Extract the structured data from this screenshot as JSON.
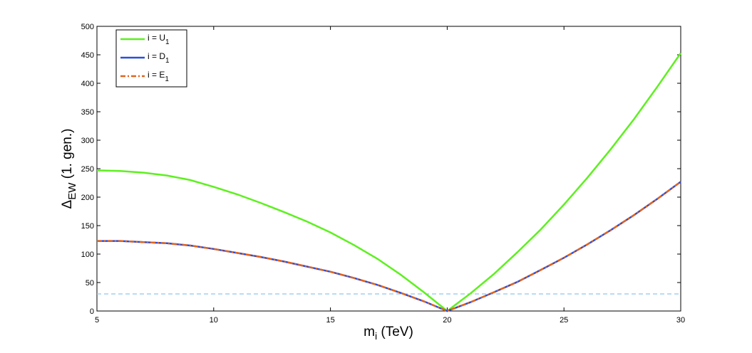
{
  "chart_data": {
    "type": "line",
    "xlabel": {
      "main": "m",
      "sub": "i",
      "rest": " (TeV)"
    },
    "ylabel": {
      "main": "Δ",
      "sub": "EW",
      "rest": " (1. gen.)"
    },
    "x": [
      5,
      6,
      7,
      8,
      9,
      10,
      11,
      12,
      13,
      14,
      15,
      16,
      17,
      18,
      19,
      20,
      21,
      22,
      23,
      24,
      25,
      26,
      27,
      28,
      29,
      30
    ],
    "series": [
      {
        "name": {
          "main": "i = U",
          "sub": "1"
        },
        "color": "#5ef01f",
        "dash": "none",
        "values": [
          247,
          246,
          243,
          238,
          230,
          218,
          205,
          190,
          174,
          157,
          138,
          116,
          92,
          64,
          33,
          0,
          31,
          65,
          103,
          143,
          187,
          234,
          284,
          337,
          394,
          453
        ]
      },
      {
        "name": {
          "main": "i = D",
          "sub": "1"
        },
        "color": "#2b4fd9",
        "dash": "none",
        "values": [
          123,
          123,
          121,
          119,
          115,
          109,
          102,
          95,
          87,
          78,
          69,
          58,
          46,
          32,
          17,
          0,
          15.5,
          33,
          51,
          72,
          93.5,
          117,
          142,
          168.5,
          197,
          227
        ]
      },
      {
        "name": {
          "main": "i = E",
          "sub": "1"
        },
        "color": "#e0641e",
        "dash": "7 3 2 3",
        "values": [
          123,
          123,
          121,
          119,
          115,
          109,
          102,
          95,
          87,
          78,
          69,
          58,
          46,
          32,
          17,
          0,
          15.5,
          33,
          51,
          72,
          93.5,
          117,
          142,
          168.5,
          197,
          227
        ]
      }
    ],
    "hline": {
      "value": 30,
      "color": "#8ec8ef"
    },
    "xlim": [
      5,
      30
    ],
    "xticks": [
      5,
      10,
      15,
      20,
      25,
      30
    ],
    "ylim": [
      0,
      500
    ],
    "yticks": [
      0,
      50,
      100,
      150,
      200,
      250,
      300,
      350,
      400,
      450,
      500
    ],
    "legend": "top-left"
  }
}
